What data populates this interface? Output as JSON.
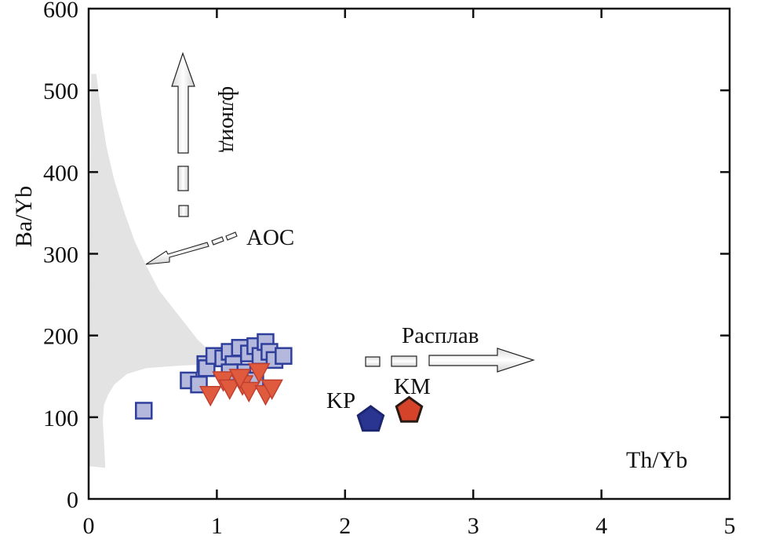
{
  "chart_data": {
    "type": "scatter",
    "xlabel": "Th/Yb",
    "ylabel": "Ba/Yb",
    "xlim": [
      0,
      5
    ],
    "ylim": [
      0,
      600
    ],
    "x_ticks": [
      "0",
      "1",
      "2",
      "3",
      "4",
      "5"
    ],
    "y_ticks": [
      "0",
      "100",
      "200",
      "300",
      "400",
      "500",
      "600"
    ],
    "grid": false,
    "aoc_field": {
      "label": "AOC",
      "fill": "#e3e3e3",
      "outline": [
        [
          0.02,
          520
        ],
        [
          0.06,
          520
        ],
        [
          0.1,
          470
        ],
        [
          0.14,
          430
        ],
        [
          0.2,
          390
        ],
        [
          0.28,
          350
        ],
        [
          0.36,
          315
        ],
        [
          0.45,
          285
        ],
        [
          0.55,
          255
        ],
        [
          0.65,
          235
        ],
        [
          0.75,
          215
        ],
        [
          0.85,
          195
        ],
        [
          0.95,
          180
        ],
        [
          1.0,
          172
        ],
        [
          0.97,
          165
        ],
        [
          0.7,
          163
        ],
        [
          0.45,
          160
        ],
        [
          0.3,
          153
        ],
        [
          0.2,
          140
        ],
        [
          0.15,
          127
        ],
        [
          0.12,
          115
        ],
        [
          0.11,
          95
        ],
        [
          0.12,
          70
        ],
        [
          0.13,
          38
        ],
        [
          0.0,
          40
        ]
      ]
    },
    "series": [
      {
        "marker": "square",
        "fill": "#b4b8dc",
        "stroke": "#2e3f9c",
        "points": [
          [
            0.43,
            108
          ],
          [
            0.78,
            145
          ],
          [
            0.86,
            140
          ],
          [
            0.91,
            165
          ],
          [
            0.92,
            160
          ],
          [
            0.98,
            175
          ],
          [
            1.05,
            172
          ],
          [
            1.1,
            180
          ],
          [
            1.13,
            165
          ],
          [
            1.18,
            185
          ],
          [
            1.2,
            155
          ],
          [
            1.25,
            178
          ],
          [
            1.3,
            187
          ],
          [
            1.34,
            175
          ],
          [
            1.38,
            192
          ],
          [
            1.41,
            180
          ],
          [
            1.45,
            170
          ],
          [
            1.52,
            175
          ],
          [
            1.3,
            145
          ],
          [
            1.1,
            155
          ]
        ]
      },
      {
        "marker": "triangle-down",
        "fill": "#e05a3e",
        "stroke": "#c04030",
        "points": [
          [
            0.95,
            127
          ],
          [
            1.05,
            145
          ],
          [
            1.1,
            135
          ],
          [
            1.2,
            140
          ],
          [
            1.25,
            132
          ],
          [
            1.33,
            155
          ],
          [
            1.38,
            128
          ],
          [
            1.43,
            135
          ],
          [
            1.18,
            148
          ]
        ]
      }
    ],
    "special_points": [
      {
        "label": "KP",
        "x": 2.2,
        "y": 97,
        "fill": "#2a3592",
        "stroke": "#1c2670"
      },
      {
        "label": "KM",
        "x": 2.5,
        "y": 108,
        "fill": "#d4432a",
        "stroke": "#2a1a14"
      }
    ],
    "annotations": {
      "fluid": "флюид",
      "melt": "Расплав",
      "aoc": "AOC",
      "xlabel_text": "Th/Yb"
    }
  }
}
